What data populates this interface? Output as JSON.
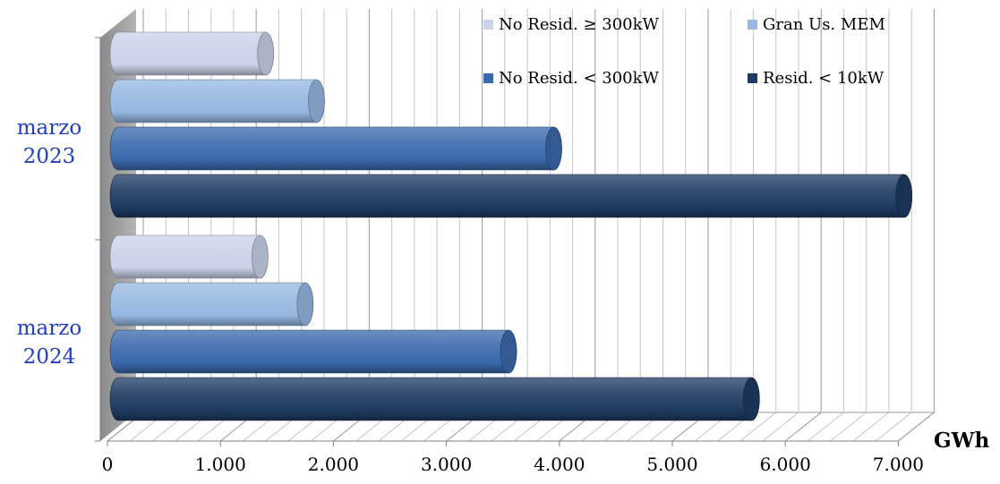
{
  "chart_data": {
    "type": "bar",
    "orientation": "horizontal",
    "style": "3d-cylinder",
    "categories": [
      "marzo 2023",
      "marzo 2024"
    ],
    "category_lines": [
      [
        "marzo",
        "2023"
      ],
      [
        "marzo",
        "2024"
      ]
    ],
    "series": [
      {
        "name": "No Resid. ≥ 300kW",
        "color": "#c9d3ea",
        "values": [
          1400,
          1350
        ]
      },
      {
        "name": "Gran Us. MEM",
        "color": "#97b8e2",
        "values": [
          1850,
          1750
        ]
      },
      {
        "name": "No Resid. < 300kW",
        "color": "#3a6aad",
        "values": [
          3950,
          3550
        ]
      },
      {
        "name": "Resid. < 10kW",
        "color": "#1f3b63",
        "values": [
          7050,
          5700
        ]
      }
    ],
    "xlim": [
      0,
      7000
    ],
    "xticks": [
      0,
      1000,
      2000,
      3000,
      4000,
      5000,
      6000,
      7000
    ],
    "xtick_labels": [
      "0",
      "1.000",
      "2.000",
      "3.000",
      "4.000",
      "5.000",
      "6.000",
      "7.000"
    ],
    "xlabel": "GWh",
    "ylabel": "",
    "title": "",
    "grid": true,
    "legend_position": "top-right"
  }
}
